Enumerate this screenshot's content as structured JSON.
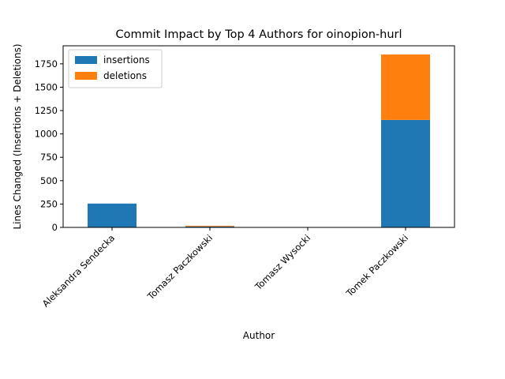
{
  "chart_data": {
    "type": "bar",
    "stacked": true,
    "title": "Commit Impact by Top 4 Authors for oinopion-hurl",
    "xlabel": "Author",
    "ylabel": "Lines Changed (Insertions + Deletions)",
    "categories": [
      "Aleksandra Sendecka",
      "Tomasz Paczkowski",
      "Tomasz Wysocki",
      "Tomek Paczkowski"
    ],
    "series": [
      {
        "name": "insertions",
        "color": "#1f77b4",
        "values": [
          255,
          10,
          0,
          1150
        ]
      },
      {
        "name": "deletions",
        "color": "#ff7f0e",
        "values": [
          0,
          8,
          0,
          700
        ]
      }
    ],
    "ylim": [
      0,
      1943
    ],
    "yticks": [
      0,
      250,
      500,
      750,
      1000,
      1250,
      1500,
      1750
    ],
    "legend_position": "top-left",
    "grid": false
  }
}
